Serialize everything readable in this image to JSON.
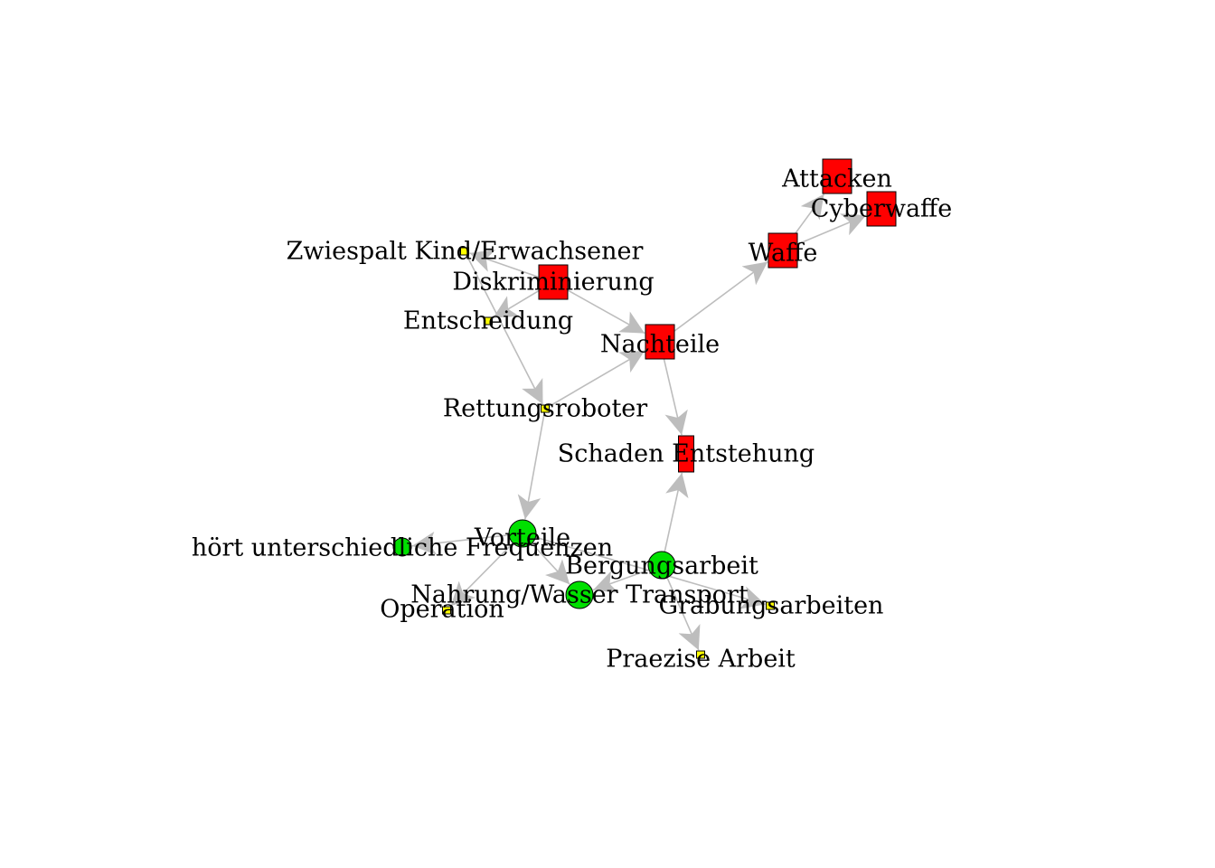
{
  "colors": {
    "edge": "#bdbdbd",
    "red": "#ff0000",
    "green": "#00e000",
    "yellow": "#ffff00",
    "outline": "#000000"
  },
  "nodes": [
    {
      "id": "attacken",
      "label": "Attacken",
      "shape": "rect",
      "size": "large",
      "color": "red"
    },
    {
      "id": "cyberwaffe",
      "label": "Cyberwaffe",
      "shape": "rect",
      "size": "large",
      "color": "red"
    },
    {
      "id": "waffe",
      "label": "Waffe",
      "shape": "rect",
      "size": "large",
      "color": "red"
    },
    {
      "id": "zwiespalt",
      "label": "Zwiespalt Kind/Erwachsener",
      "shape": "rect",
      "size": "small",
      "color": "yellow"
    },
    {
      "id": "diskriminierung",
      "label": "Diskriminierung",
      "shape": "rect",
      "size": "large",
      "color": "red"
    },
    {
      "id": "entscheidung",
      "label": "Entscheidung",
      "shape": "rect",
      "size": "small",
      "color": "yellow"
    },
    {
      "id": "nachteile",
      "label": "Nachteile",
      "shape": "rect",
      "size": "large",
      "color": "red"
    },
    {
      "id": "rettungsroboter",
      "label": "Rettungsroboter",
      "shape": "rect",
      "size": "small",
      "color": "yellow"
    },
    {
      "id": "schaden",
      "label": "Schaden Entstehung",
      "shape": "rect",
      "size": "narrow",
      "color": "red"
    },
    {
      "id": "vorteile",
      "label": "Vorteile",
      "shape": "circle",
      "size": "large",
      "color": "green"
    },
    {
      "id": "frequenzen",
      "label": "hört unterschiedliche Frequenzen",
      "shape": "circle",
      "size": "medium",
      "color": "green"
    },
    {
      "id": "bergungsarbeit",
      "label": "Bergungsarbeit",
      "shape": "circle",
      "size": "large",
      "color": "green"
    },
    {
      "id": "nahrung",
      "label": "Nahrung/Wasser Transport",
      "shape": "circle",
      "size": "large",
      "color": "green"
    },
    {
      "id": "operation",
      "label": "Operation",
      "shape": "rect",
      "size": "small",
      "color": "yellow"
    },
    {
      "id": "grabungsarbeiten",
      "label": "Grabungsarbeiten",
      "shape": "rect",
      "size": "small",
      "color": "yellow"
    },
    {
      "id": "praezise",
      "label": "Praezise Arbeit",
      "shape": "rect",
      "size": "small",
      "color": "yellow"
    }
  ],
  "edges": [
    {
      "from": "waffe",
      "to": "attacken"
    },
    {
      "from": "waffe",
      "to": "cyberwaffe"
    },
    {
      "from": "nachteile",
      "to": "waffe"
    },
    {
      "from": "diskriminierung",
      "to": "zwiespalt"
    },
    {
      "from": "diskriminierung",
      "to": "entscheidung"
    },
    {
      "from": "diskriminierung",
      "to": "nachteile"
    },
    {
      "from": "zwiespalt",
      "to": "rettungsroboter"
    },
    {
      "from": "rettungsroboter",
      "to": "nachteile"
    },
    {
      "from": "nachteile",
      "to": "schaden"
    },
    {
      "from": "rettungsroboter",
      "to": "vorteile"
    },
    {
      "from": "vorteile",
      "to": "frequenzen"
    },
    {
      "from": "vorteile",
      "to": "operation"
    },
    {
      "from": "vorteile",
      "to": "nahrung"
    },
    {
      "from": "bergungsarbeit",
      "to": "schaden"
    },
    {
      "from": "bergungsarbeit",
      "to": "nahrung"
    },
    {
      "from": "bergungsarbeit",
      "to": "praezise"
    },
    {
      "from": "vorteile",
      "to": "grabungsarbeiten"
    }
  ]
}
